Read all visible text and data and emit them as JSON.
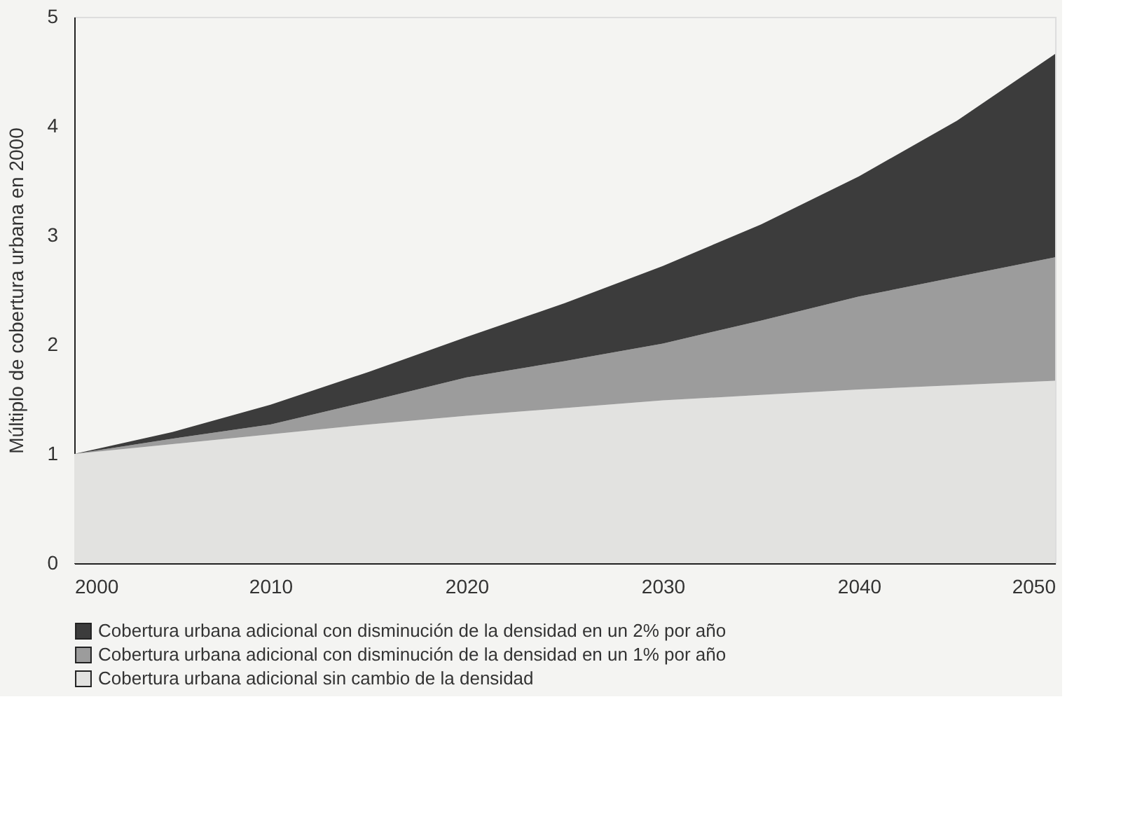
{
  "chart_data": {
    "type": "area",
    "stacked": true,
    "ylabel": "Múltiplo de cobertura urbana en 2000",
    "legend": "bottom",
    "x": [
      2000,
      2005,
      2010,
      2015,
      2020,
      2025,
      2030,
      2035,
      2040,
      2045,
      2050
    ],
    "xlim": [
      2000,
      2050
    ],
    "xticks": [
      2000,
      2010,
      2020,
      2030,
      2040,
      2050
    ],
    "ylim": [
      0,
      5
    ],
    "yticks": [
      0,
      1,
      2,
      3,
      4,
      5
    ],
    "series": [
      {
        "name": "Cobertura urbana adicional sin cambio de la densidad",
        "color": "#e2e2e0",
        "values": [
          1,
          1.09,
          1.18,
          1.27,
          1.35,
          1.42,
          1.49,
          1.54,
          1.59,
          1.63,
          1.67
        ]
      },
      {
        "name": "Cobertura urbana adicional con disminución de la densidad en un 1% por año",
        "color": "#9c9c9c",
        "values": [
          0,
          0.05,
          0.09,
          0.21,
          0.35,
          0.43,
          0.52,
          0.68,
          0.85,
          0.99,
          1.13
        ]
      },
      {
        "name": "Cobertura urbana adicional con disminución de la densidad en un 2% por año",
        "color": "#3c3c3c",
        "values": [
          0,
          0.06,
          0.18,
          0.27,
          0.37,
          0.53,
          0.71,
          0.88,
          1.1,
          1.43,
          1.86
        ]
      }
    ]
  }
}
